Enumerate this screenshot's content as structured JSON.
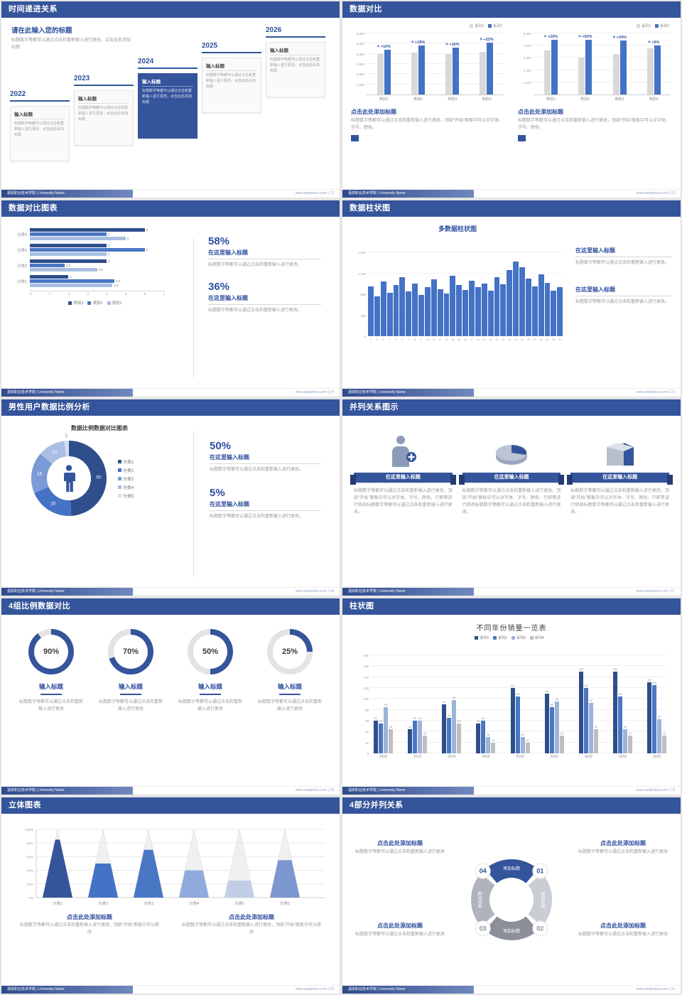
{
  "theme": {
    "header_blue": "#34549B",
    "accent_blue": "#2E4E9E",
    "bar_blue": "#4472C4",
    "bar_gray": "#D9D9D9",
    "text_gray": "#999999"
  },
  "footer": {
    "org": "酒泉职业技术学院 | University Name"
  },
  "slides": {
    "s12": {
      "title": "时间递进关系",
      "footer_right": "www.aotgenius.com | 12",
      "intro_title": "请在此输入您的标题",
      "intro_text": "标题数字等都可以通过点击和重新输入进行更改，点击此处添加标题",
      "items": [
        {
          "year": "2022",
          "label": "输入标题",
          "text": "标题数字等都可以通过点击和重新输入进行更改，点击此处添加标题",
          "highlight": false
        },
        {
          "year": "2023",
          "label": "输入标题",
          "text": "标题数字等都可以通过点击和重新输入进行更改，点击此处添加标题",
          "highlight": false
        },
        {
          "year": "2024",
          "label": "输入标题",
          "text": "标题数字等都可以通过点击和重新输入进行更改，点击此处添加标题",
          "highlight": true
        },
        {
          "year": "2025",
          "label": "输入标题",
          "text": "标题数字等都可以通过点击和重新输入进行更改，点击此处添加标题",
          "highlight": false
        },
        {
          "year": "2026",
          "label": "输入标题",
          "text": "标题数字等都可以通过点击和重新输入进行更改，点击此处添加标题",
          "highlight": false
        }
      ]
    },
    "s13": {
      "title": "数据对比",
      "footer_right": "www.aotgenius.com | 13",
      "left": {
        "caption_title": "点击此处添加标题",
        "caption_text": "标题数字等都可以通过点击和重新输入进行更改，顶部“开始”面板中可以对字体、字号、颜色。",
        "chart": {
          "type": "bar",
          "categories": [
            "类别1",
            "类别2",
            "类别3",
            "类别4"
          ],
          "series": [
            {
              "name": "系列1",
              "color": "#D9D9D9",
              "values": [
                4000,
                4100,
                4000,
                4200
              ]
            },
            {
              "name": "系列2",
              "color": "#4472C4",
              "values": [
                4400,
                4800,
                4600,
                5100
              ]
            }
          ],
          "deltas": [
            "+10%",
            "+18%",
            "+16%",
            "+22%"
          ],
          "ymax": 6000,
          "yticks": [
            1000,
            2000,
            3000,
            4000,
            5000,
            6000
          ]
        }
      },
      "right": {
        "caption_title": "点击此处添加标题",
        "caption_text": "标题数字等都可以通过点击和重新输入进行更改，顶部“开始”面板中可以对字体、字号、颜色。",
        "chart": {
          "type": "bar",
          "categories": [
            "类别1",
            "类别2",
            "类别3",
            "类别4"
          ],
          "series": [
            {
              "name": "系列1",
              "color": "#D9D9D9",
              "values": [
                3600,
                3000,
                3300,
                3800
              ]
            },
            {
              "name": "系列2",
              "color": "#4472C4",
              "values": [
                4500,
                4500,
                4400,
                4000
              ]
            }
          ],
          "deltas": [
            "+25%",
            "+50%",
            "+34%",
            "+5%"
          ],
          "ymax": 5000,
          "yticks": [
            1000,
            2000,
            3000,
            4000,
            5000
          ]
        }
      }
    },
    "s14": {
      "title": "数据对比图表",
      "footer_right": "www.aotgenius.com | 14",
      "chart": {
        "type": "bar-horizontal",
        "categories": [
          "分类1",
          "分类2",
          "分类3",
          "分类4"
        ],
        "series": [
          {
            "name": "类别3",
            "color": "#2F4E8C",
            "values": [
              2,
              4,
              4,
              6
            ]
          },
          {
            "name": "类别2",
            "color": "#4A77C4",
            "values": [
              4.4,
              1.8,
              6,
              4
            ]
          },
          {
            "name": "类别1",
            "color": "#A9BEE3",
            "values": [
              4.3,
              3.5,
              4,
              5
            ]
          }
        ],
        "xmax": 7
      },
      "stats": [
        {
          "percent": "58%",
          "title": "在这里输入标题",
          "text": "标题数字等都可以通过点击和重新输入进行更改。"
        },
        {
          "percent": "36%",
          "title": "在这里输入标题",
          "text": "标题数字等都可以通过点击和重新输入进行更改。"
        }
      ]
    },
    "s15": {
      "title": "数据柱状图",
      "footer_right": "www.aotgenius.com | 15",
      "chart": {
        "type": "bar",
        "title": "多数据柱状图",
        "values": [
          950,
          760,
          1040,
          830,
          980,
          1120,
          860,
          1000,
          780,
          940,
          1090,
          900,
          820,
          1150,
          980,
          880,
          1060,
          930,
          1010,
          870,
          1130,
          990,
          1260,
          1430,
          1310,
          1100,
          950,
          1180,
          1020,
          870,
          930
        ],
        "ymax": 1600,
        "yticks": [
          0,
          400,
          800,
          1200,
          1600
        ],
        "bar_color": "#4472C4"
      },
      "blocks": [
        {
          "title": "在这里输入标题",
          "text": "标题数字等都可以通过点击和重新输入进行更改。"
        },
        {
          "title": "在这里输入标题",
          "text": "标题数字等都可以通过点击和重新输入进行更改。"
        }
      ]
    },
    "s16": {
      "title": "男性用户数据比例分析",
      "footer_right": "www.aotgenius.com | 16",
      "chart": {
        "type": "pie",
        "title": "数据比例数据对比图表",
        "slices": [
          {
            "label": "分类1",
            "value": 50,
            "color": "#2F4E8C"
          },
          {
            "label": "分类2",
            "value": 20,
            "color": "#4472C4"
          },
          {
            "label": "分类3",
            "value": 18,
            "color": "#7C9AD6"
          },
          {
            "label": "分类4",
            "value": 12,
            "color": "#A9BEE3"
          },
          {
            "label": "分类5",
            "value": 2,
            "color": "#D4DEF1"
          }
        ]
      },
      "stats": [
        {
          "percent": "50%",
          "title": "在这里输入标题",
          "text": "标题数字等都可以通过点击和重新输入进行更改。"
        },
        {
          "percent": "5%",
          "title": "在这里输入标题",
          "text": "标题数字等都可以通过点击和重新输入进行更改。"
        }
      ]
    },
    "s17": {
      "title": "并列关系图示",
      "footer_right": "www.aotgenius.com | 17",
      "cols": [
        {
          "icon": "medic-icon",
          "button": "在这里输入标题",
          "text": "标题数字等都可以通过点击和重新输入进行更改，顶部“开始”面板中可以对字体、字号、颜色、行距等进行修改标题数字等都可以通过点击和重新输入进行更改。"
        },
        {
          "icon": "pie-3d-icon",
          "button": "在这里输入标题",
          "text": "标题数字等都可以通过点击和重新输入进行更改，顶部“开始”面板中可以对字体、字号、颜色、行距等进行修改标题数字等都可以通过点击和重新输入进行更改。"
        },
        {
          "icon": "building-3d-icon",
          "button": "在这里输入标题",
          "text": "标题数字等都可以通过点击和重新输入进行更改，顶部“开始”面板中可以对字体、字号、颜色、行距等进行修改标题数字等都可以通过点击和重新输入进行更改。"
        }
      ]
    },
    "s18": {
      "title": "4组比例数据对比",
      "footer_right": "www.aotgenius.com | 18",
      "ring_color": "#34549B",
      "ring_track": "#E3E3E3",
      "rings": [
        {
          "percent": "90%",
          "value": 90,
          "title": "输入标题",
          "text": "标题数字等都可以通过点击和重新输入进行更改"
        },
        {
          "percent": "70%",
          "value": 70,
          "title": "输入标题",
          "text": "标题数字等都可以通过点击和重新输入进行更改"
        },
        {
          "percent": "50%",
          "value": 50,
          "title": "输入标题",
          "text": "标题数字等都可以通过点击和重新输入进行更改"
        },
        {
          "percent": "25%",
          "value": 25,
          "title": "输入标题",
          "text": "标题数字等都可以通过点击和重新输入进行更改"
        }
      ]
    },
    "s19": {
      "title": "柱状图",
      "footer_right": "www.aotgenius.com | 19",
      "chart": {
        "type": "bar",
        "title": "不同年份销量一览表",
        "categories": [
          "2010",
          "2012",
          "2014",
          "2016",
          "2018",
          "2020",
          "2022",
          "2024",
          "2026"
        ],
        "series": [
          {
            "name": "系列1",
            "color": "#2E4D8A",
            "values": [
              60,
              45,
              90,
              55,
              120,
              110,
              150,
              150,
              130
            ]
          },
          {
            "name": "系列2",
            "color": "#4A77C4",
            "values": [
              55,
              60,
              65,
              60,
              105,
              85,
              120,
              105,
              125
            ]
          },
          {
            "name": "系列3",
            "color": "#9DB3D8",
            "values": [
              85,
              60,
              98,
              30,
              30,
              95,
              92,
              45,
              62
            ]
          },
          {
            "name": "系列4",
            "color": "#BFBFBF",
            "values": [
              45,
              32,
              55,
              20,
              20,
              32,
              45,
              32,
              32
            ]
          }
        ],
        "ymax": 180,
        "ystep": 20
      }
    },
    "s20": {
      "title": "立体图表",
      "footer_right": "www.aotgenius.com | 20",
      "chart": {
        "type": "cone",
        "categories": [
          "分类1",
          "分类2",
          "分类3",
          "分类4",
          "分类5",
          "分类6"
        ],
        "values": [
          85,
          50,
          70,
          40,
          25,
          55
        ],
        "colors": [
          "#34549B",
          "#4472C4",
          "#4A77C4",
          "#8FAADC",
          "#C2CEE6",
          "#7C97CF"
        ]
      },
      "captions": [
        {
          "title": "点击此处添加标题",
          "text": "标题数字等都可以通过点击和重新输入进行更改，顶部“开始”面板中可以修改"
        },
        {
          "title": "点击此处添加标题",
          "text": "标题数字等都可以通过点击和重新输入进行更改，顶部“开始”面板中可以修改"
        }
      ]
    },
    "s21": {
      "title": "4部分并列关系",
      "footer_right": "www.aotgenius.com | 21",
      "segments": [
        {
          "label": "添加标题",
          "color": "#34549B"
        },
        {
          "label": "添加标题",
          "color": "#C9CDD4"
        },
        {
          "label": "添加标题",
          "color": "#8A8F98"
        },
        {
          "label": "添加标题",
          "color": "#AFB4BC"
        }
      ],
      "badges": [
        {
          "num": "01",
          "color": "#2E4E9E"
        },
        {
          "num": "02",
          "color": "#8A8F98"
        },
        {
          "num": "03",
          "color": "#8A8F98"
        },
        {
          "num": "04",
          "color": "#2E4E9E"
        }
      ],
      "blocks": [
        {
          "title": "点击此处添加标题",
          "text": "标题数字等都可以通过点击和重新输入进行更改"
        },
        {
          "title": "点击此处添加标题",
          "text": "标题数字等都可以通过点击和重新输入进行更改"
        },
        {
          "title": "点击此处添加标题",
          "text": "标题数字等都可以通过点击和重新输入进行更改"
        },
        {
          "title": "点击此处添加标题",
          "text": "标题数字等都可以通过点击和重新输入进行更改"
        }
      ]
    }
  }
}
